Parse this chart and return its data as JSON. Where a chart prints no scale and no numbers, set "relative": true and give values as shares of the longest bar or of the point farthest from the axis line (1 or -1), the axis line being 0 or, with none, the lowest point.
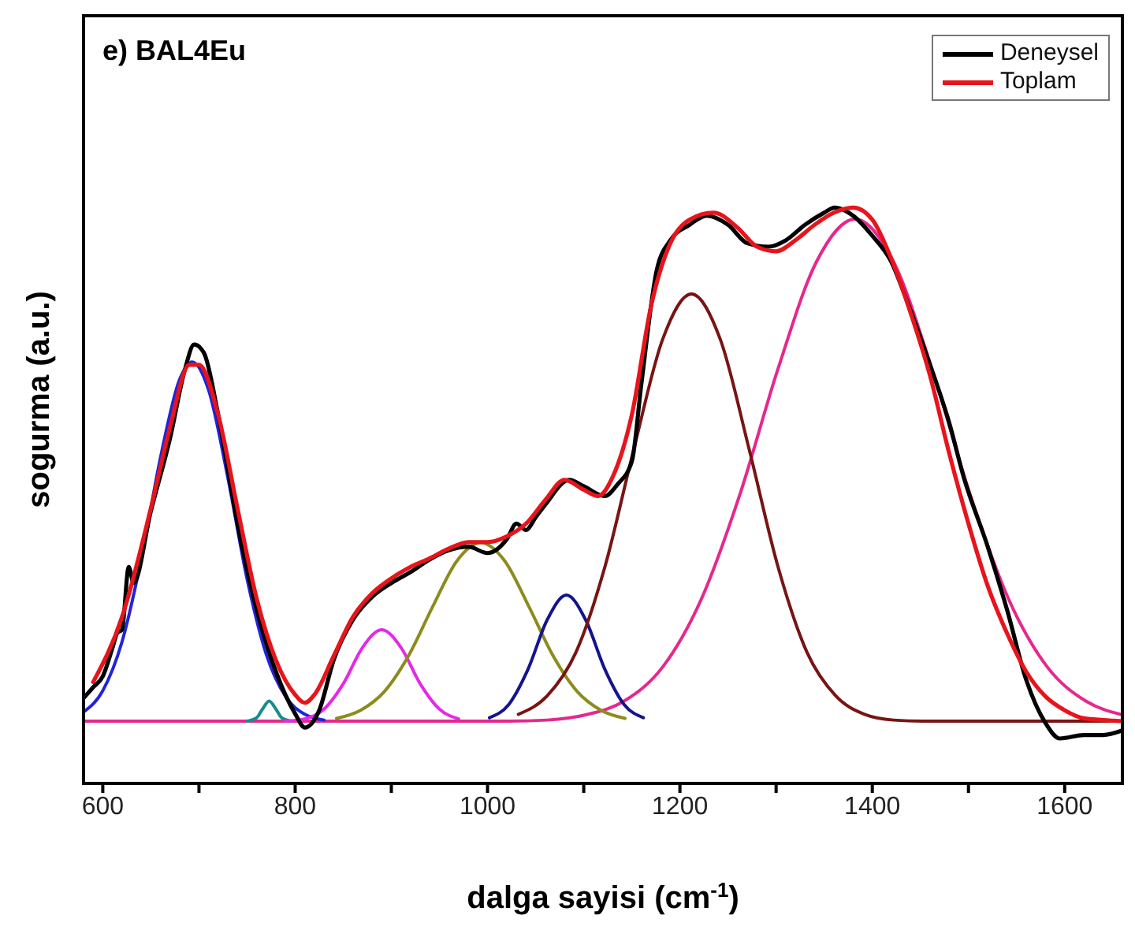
{
  "chart_data": {
    "type": "line",
    "title": "e) BAL4Eu",
    "xlabel": "dalga sayisi (cm$^{-1}$)",
    "ylabel": "sogurma (a.u.)",
    "relative": true,
    "legend": "top right",
    "marker": "none",
    "line_style": "solid",
    "xlim": [
      580,
      1660
    ],
    "xticks": [
      600,
      {
        "value": 700,
        "label": null
      },
      800,
      {
        "value": 900,
        "label": null
      },
      1000,
      {
        "value": 1100,
        "label": null
      },
      1200,
      {
        "value": 1300,
        "label": null
      },
      1400,
      {
        "value": 1500,
        "label": null
      },
      1600
    ],
    "series": [
      {
        "color": "#e6288c",
        "x": [
          580,
          1022,
          1062,
          1102,
          1142,
          1182,
          1222,
          1262,
          1302,
          1342,
          1382,
          1422,
          1462,
          1502,
          1542,
          1582,
          1622,
          1660
        ],
        "values": [
          0.108,
          0.108,
          0.11,
          0.119,
          0.143,
          0.202,
          0.319,
          0.5,
          0.72,
          0.906,
          0.98,
          0.906,
          0.72,
          0.5,
          0.319,
          0.202,
          0.143,
          0.119
        ]
      },
      {
        "color": "#2323d8",
        "x": [
          580,
          600,
          620,
          640,
          660,
          680,
          693,
          710,
          730,
          750,
          770,
          790,
          810,
          830
        ],
        "values": [
          0.124,
          0.161,
          0.246,
          0.389,
          0.566,
          0.702,
          0.732,
          0.683,
          0.531,
          0.355,
          0.224,
          0.151,
          0.12,
          0.11
        ]
      },
      {
        "color": "#1a8c8c",
        "x": [
          750,
          760,
          766,
          773,
          780,
          786,
          796
        ],
        "values": [
          0.108,
          0.114,
          0.129,
          0.143,
          0.129,
          0.114,
          0.108
        ]
      },
      {
        "color": "#e628e6",
        "x": [
          790,
          810,
          830,
          850,
          870,
          890,
          910,
          930,
          950,
          970
        ],
        "values": [
          0.108,
          0.112,
          0.129,
          0.173,
          0.236,
          0.267,
          0.236,
          0.173,
          0.129,
          0.112
        ]
      },
      {
        "color": "#8c8c1e",
        "x": [
          843,
          868,
          893,
          918,
          943,
          968,
          993,
          1018,
          1043,
          1068,
          1093,
          1118,
          1143
        ],
        "values": [
          0.113,
          0.127,
          0.16,
          0.222,
          0.307,
          0.386,
          0.418,
          0.386,
          0.307,
          0.222,
          0.16,
          0.127,
          0.113
        ]
      },
      {
        "color": "#14148c",
        "x": [
          1002,
          1022,
          1042,
          1062,
          1082,
          1102,
          1122,
          1142,
          1162
        ],
        "values": [
          0.114,
          0.137,
          0.198,
          0.284,
          0.327,
          0.284,
          0.198,
          0.137,
          0.114
        ]
      },
      {
        "color": "#781414",
        "x": [
          1032,
          1062,
          1092,
          1122,
          1152,
          1182,
          1212,
          1242,
          1272,
          1302,
          1332,
          1362,
          1392,
          1422,
          1452,
          1660
        ],
        "values": [
          0.12,
          0.152,
          0.228,
          0.376,
          0.58,
          0.771,
          0.85,
          0.771,
          0.58,
          0.376,
          0.228,
          0.152,
          0.12,
          0.11,
          0.108,
          0.108
        ]
      },
      {
        "name": "Deneysel",
        "color": "#000000",
        "x": [
          580,
          590,
          600,
          610,
          615,
          620,
          627,
          632,
          650,
          670,
          685,
          695,
          705,
          720,
          740,
          760,
          780,
          800,
          810,
          825,
          840,
          860,
          880,
          900,
          920,
          940,
          960,
          980,
          1000,
          1020,
          1030,
          1040,
          1050,
          1060,
          1085,
          1100,
          1122,
          1135,
          1150,
          1160,
          1176,
          1190,
          1210,
          1228,
          1250,
          1270,
          1292,
          1310,
          1330,
          1350,
          1361,
          1380,
          1400,
          1420,
          1436,
          1460,
          1480,
          1495,
          1520,
          1540,
          1560,
          1580,
          1595,
          1620,
          1640,
          1660
        ],
        "values": [
          0.148,
          0.167,
          0.186,
          0.235,
          0.261,
          0.267,
          0.376,
          0.348,
          0.473,
          0.6,
          0.716,
          0.762,
          0.748,
          0.64,
          0.451,
          0.302,
          0.194,
          0.121,
          0.097,
          0.127,
          0.214,
          0.284,
          0.324,
          0.348,
          0.367,
          0.389,
          0.405,
          0.411,
          0.4,
          0.424,
          0.451,
          0.44,
          0.462,
          0.484,
          0.527,
          0.516,
          0.499,
          0.519,
          0.559,
          0.695,
          0.892,
          0.943,
          0.97,
          0.986,
          0.97,
          0.938,
          0.932,
          0.943,
          0.97,
          0.991,
          1,
          0.986,
          0.951,
          0.905,
          0.838,
          0.727,
          0.626,
          0.532,
          0.411,
          0.302,
          0.18,
          0.105,
          0.078,
          0.084,
          0.084,
          0.092
        ]
      },
      {
        "name": "Toplam",
        "color": "#e8141c",
        "x": [
          590,
          620,
          650,
          670,
          690,
          700,
          720,
          740,
          760,
          780,
          800,
          810,
          820,
          840,
          860,
          880,
          900,
          920,
          940,
          960,
          980,
          1000,
          1020,
          1040,
          1060,
          1080,
          1100,
          1115,
          1130,
          1150,
          1170,
          1190,
          1210,
          1235,
          1260,
          1280,
          1300,
          1320,
          1340,
          1360,
          1380,
          1400,
          1420,
          1440,
          1460,
          1480,
          1500,
          1520,
          1540,
          1560,
          1580,
          1600,
          1620,
          1640,
          1660
        ],
        "values": [
          0.176,
          0.289,
          0.478,
          0.619,
          0.727,
          0.727,
          0.64,
          0.478,
          0.321,
          0.214,
          0.154,
          0.14,
          0.154,
          0.221,
          0.289,
          0.33,
          0.356,
          0.376,
          0.391,
          0.408,
          0.419,
          0.419,
          0.429,
          0.451,
          0.492,
          0.527,
          0.51,
          0.499,
          0.532,
          0.64,
          0.829,
          0.938,
          0.979,
          0.991,
          0.965,
          0.932,
          0.924,
          0.943,
          0.97,
          0.991,
          1,
          0.979,
          0.91,
          0.816,
          0.708,
          0.573,
          0.451,
          0.343,
          0.261,
          0.194,
          0.151,
          0.127,
          0.113,
          0.11,
          0.108
        ]
      }
    ]
  }
}
